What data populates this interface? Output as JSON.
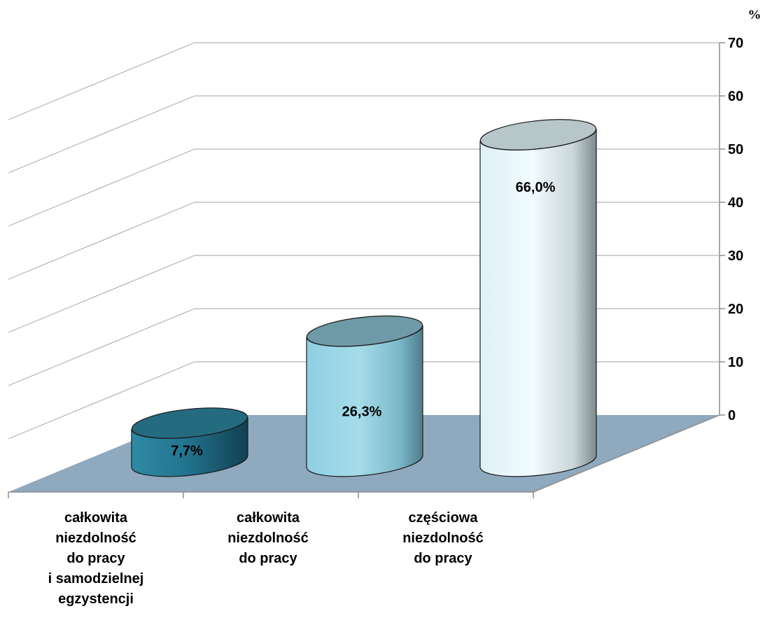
{
  "chart_data": {
    "type": "bar",
    "unit": "%",
    "categories": [
      [
        "całkowita",
        "niezdolność",
        "do pracy",
        "i samodzielnej",
        "egzystencji"
      ],
      [
        "całkowita",
        "niezdolność",
        "do pracy"
      ],
      [
        "częściowa",
        "niezdolność",
        "do pracy"
      ]
    ],
    "values": [
      7.7,
      26.3,
      66.0
    ],
    "data_labels": [
      "7,7%",
      "26,3%",
      "66,0%"
    ],
    "ylim": [
      0,
      70
    ],
    "yticks": [
      0,
      10,
      20,
      30,
      40,
      50,
      60,
      70
    ],
    "grid": true,
    "colors": {
      "bar_dark": "#1f6a80",
      "bar_mid": "#8fcfe0",
      "bar_light": "#e6f6fb",
      "floor": "#8fa9bf",
      "grid": "#b3b3b3"
    }
  }
}
